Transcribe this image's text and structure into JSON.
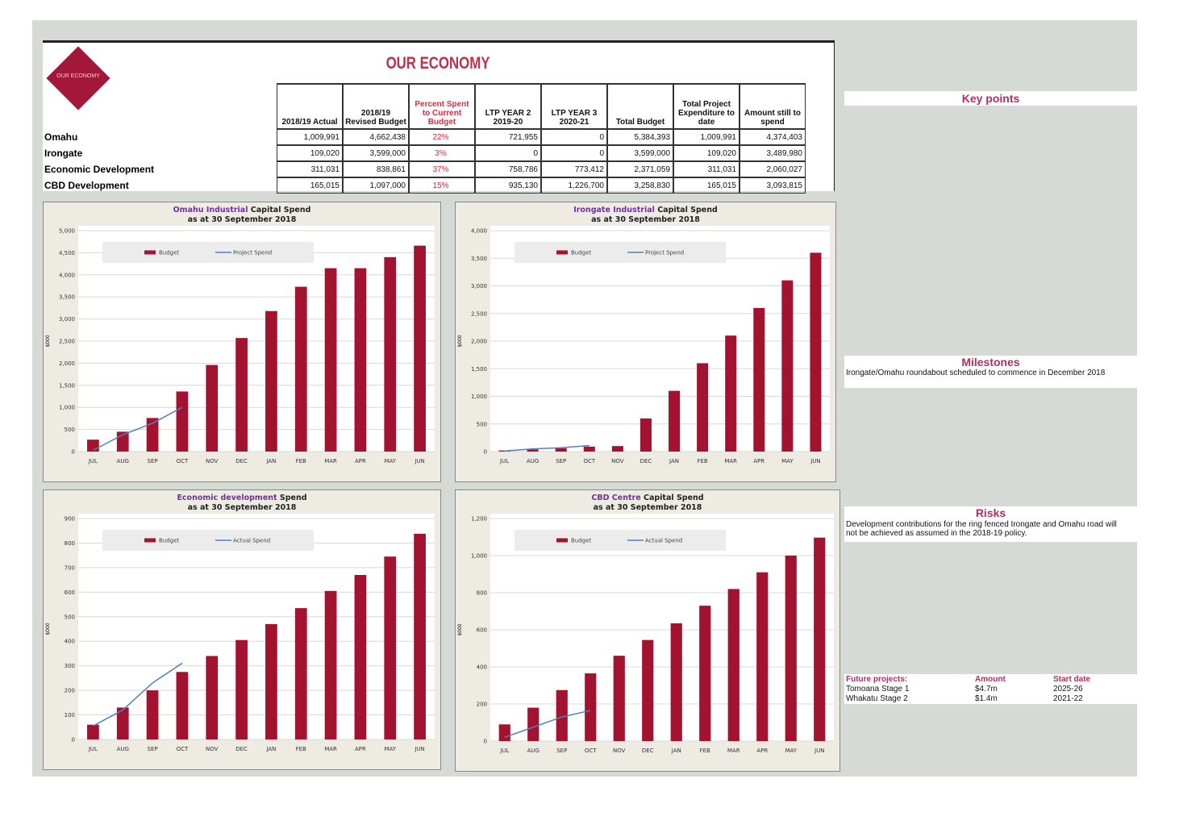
{
  "header": {
    "logo_text": "OUR ECONOMY",
    "title": "OUR ECONOMY"
  },
  "table": {
    "columns": [
      "2018/19 Actual",
      "2018/19 Revised Budget",
      "Percent Spent to Current Budget",
      "LTP YEAR 2 2019-20",
      "LTP YEAR 3 2020-21",
      "Total Budget",
      "Total Project Expenditure to date",
      "Amount still to spend"
    ],
    "rows": [
      [
        "Omahu",
        "1,009,991",
        "4,662,438",
        "22%",
        "721,955",
        "0",
        "5,384,393",
        "1,009,991",
        "4,374,403"
      ],
      [
        "Irongate",
        "109,020",
        "3,599,000",
        "3%",
        "0",
        "0",
        "3,599,000",
        "109,020",
        "3,489,980"
      ],
      [
        "Economic Development",
        "311,031",
        "838,861",
        "37%",
        "758,786",
        "773,412",
        "2,371,059",
        "311,031",
        "2,060,027"
      ],
      [
        "CBD Development",
        "165,015",
        "1,097,000",
        "15%",
        "935,130",
        "1,226,700",
        "3,258,830",
        "165,015",
        "3,093,815"
      ]
    ]
  },
  "chart_data": [
    {
      "type": "bar",
      "title_highlight": "Omahu Industrial",
      "title": "Capital Spend",
      "subtitle": "as at 30 September 2018",
      "ylabel": "$000",
      "categories": [
        "JUL",
        "AUG",
        "SEP",
        "OCT",
        "NOV",
        "DEC",
        "JAN",
        "FEB",
        "MAR",
        "APR",
        "MAY",
        "JUN"
      ],
      "series": [
        {
          "name": "Budget",
          "type": "bar",
          "color": "#a3132f",
          "values": [
            270,
            450,
            760,
            1360,
            1960,
            2570,
            3180,
            3730,
            4150,
            4150,
            4400,
            4660
          ]
        },
        {
          "name": "Project Spend",
          "type": "line",
          "color": "#4f81bd",
          "values": [
            30,
            380,
            640,
            1000,
            null,
            null,
            null,
            null,
            null,
            null,
            null,
            null
          ]
        }
      ],
      "ylim": [
        0,
        5000
      ],
      "yticks": [
        0,
        500,
        {
          "value": 1000,
          "label": "1,000"
        },
        {
          "value": 1500,
          "label": "1,500"
        },
        {
          "value": 2000,
          "label": "2,000"
        },
        {
          "value": 2500,
          "label": "2,500"
        },
        {
          "value": 3000,
          "label": "3,000"
        },
        {
          "value": 3500,
          "label": "3,500"
        },
        {
          "value": 4000,
          "label": "4,000"
        },
        {
          "value": 4500,
          "label": "4,500"
        },
        {
          "value": 5000,
          "label": "5,000"
        }
      ],
      "grid": true
    },
    {
      "type": "bar",
      "title_highlight": "Irongate Industrial",
      "title": "Capital Spend",
      "subtitle": "as at 30 September 2018",
      "ylabel": "$000",
      "categories": [
        "JUL",
        "AUG",
        "SEP",
        "OCT",
        "NOV",
        "DEC",
        "JAN",
        "FEB",
        "MAR",
        "APR",
        "MAY",
        "JUN"
      ],
      "series": [
        {
          "name": "Budget",
          "type": "bar",
          "color": "#a3132f",
          "values": [
            20,
            40,
            60,
            90,
            100,
            600,
            1100,
            1600,
            2100,
            2600,
            3100,
            3600
          ]
        },
        {
          "name": "Project Spend",
          "type": "line",
          "color": "#4f81bd",
          "values": [
            10,
            50,
            70,
            109,
            null,
            null,
            null,
            null,
            null,
            null,
            null,
            null
          ]
        }
      ],
      "ylim": [
        0,
        4000
      ],
      "yticks": [
        0,
        500,
        {
          "value": 1000,
          "label": "1,000"
        },
        {
          "value": 1500,
          "label": "1,500"
        },
        {
          "value": 2000,
          "label": "2,000"
        },
        {
          "value": 2500,
          "label": "2,500"
        },
        {
          "value": 3000,
          "label": "3,000"
        },
        {
          "value": 3500,
          "label": "3,500"
        },
        {
          "value": 4000,
          "label": "4,000"
        }
      ],
      "grid": true
    },
    {
      "type": "bar",
      "title_highlight": "Economic development",
      "title": "Spend",
      "subtitle": "as at 30 September 2018",
      "ylabel": "$000",
      "categories": [
        "JUL",
        "AUG",
        "SEP",
        "OCT",
        "NOV",
        "DEC",
        "JAN",
        "FEB",
        "MAR",
        "APR",
        "MAY",
        "JUN"
      ],
      "series": [
        {
          "name": "Budget",
          "type": "bar",
          "color": "#a3132f",
          "values": [
            60,
            130,
            200,
            275,
            340,
            405,
            470,
            535,
            605,
            670,
            745,
            838
          ]
        },
        {
          "name": "Actual Spend",
          "type": "line",
          "color": "#4f81bd",
          "values": [
            55,
            120,
            230,
            311,
            null,
            null,
            null,
            null,
            null,
            null,
            null,
            null
          ]
        }
      ],
      "ylim": [
        0,
        900
      ],
      "yticks": [
        0,
        100,
        200,
        300,
        400,
        500,
        600,
        700,
        800,
        900
      ],
      "grid": true
    },
    {
      "type": "bar",
      "title_highlight": "CBD Centre",
      "title": "Capital Spend",
      "subtitle": "as at 30 September 2018",
      "ylabel": "$000",
      "categories": [
        "JUL",
        "AUG",
        "SEP",
        "OCT",
        "NOV",
        "DEC",
        "JAN",
        "FEB",
        "MAR",
        "APR",
        "MAY",
        "JUN"
      ],
      "series": [
        {
          "name": "Budget",
          "type": "bar",
          "color": "#a3132f",
          "values": [
            90,
            180,
            275,
            365,
            460,
            545,
            635,
            730,
            820,
            910,
            1000,
            1097
          ]
        },
        {
          "name": "Actual Spend",
          "type": "line",
          "color": "#4f81bd",
          "values": [
            20,
            75,
            130,
            165,
            null,
            null,
            null,
            null,
            null,
            null,
            null,
            null
          ]
        }
      ],
      "ylim": [
        0,
        1200
      ],
      "yticks": [
        0,
        200,
        400,
        600,
        800,
        {
          "value": 1000,
          "label": "1,000"
        },
        {
          "value": 1200,
          "label": "1,200"
        }
      ],
      "grid": true
    }
  ],
  "side": {
    "key_points": {
      "title": "Key points"
    },
    "milestones": {
      "title": "Milestones",
      "text": "Irongate/Omahu roundabout scheduled to commence in December 2018"
    },
    "risks": {
      "title": "Risks",
      "text": "Development contributions for the ring fenced Irongate and Omahu road will not be achieved as assumed in the 2018-19 policy."
    },
    "future": {
      "columns": [
        "Future projects:",
        "Amount",
        "Start date"
      ],
      "rows": [
        [
          "Tomoana Stage 1",
          "$4.7m",
          "2025-26"
        ],
        [
          "Whakatu Stage 2",
          "$1.4m",
          "2021-22"
        ]
      ]
    }
  }
}
